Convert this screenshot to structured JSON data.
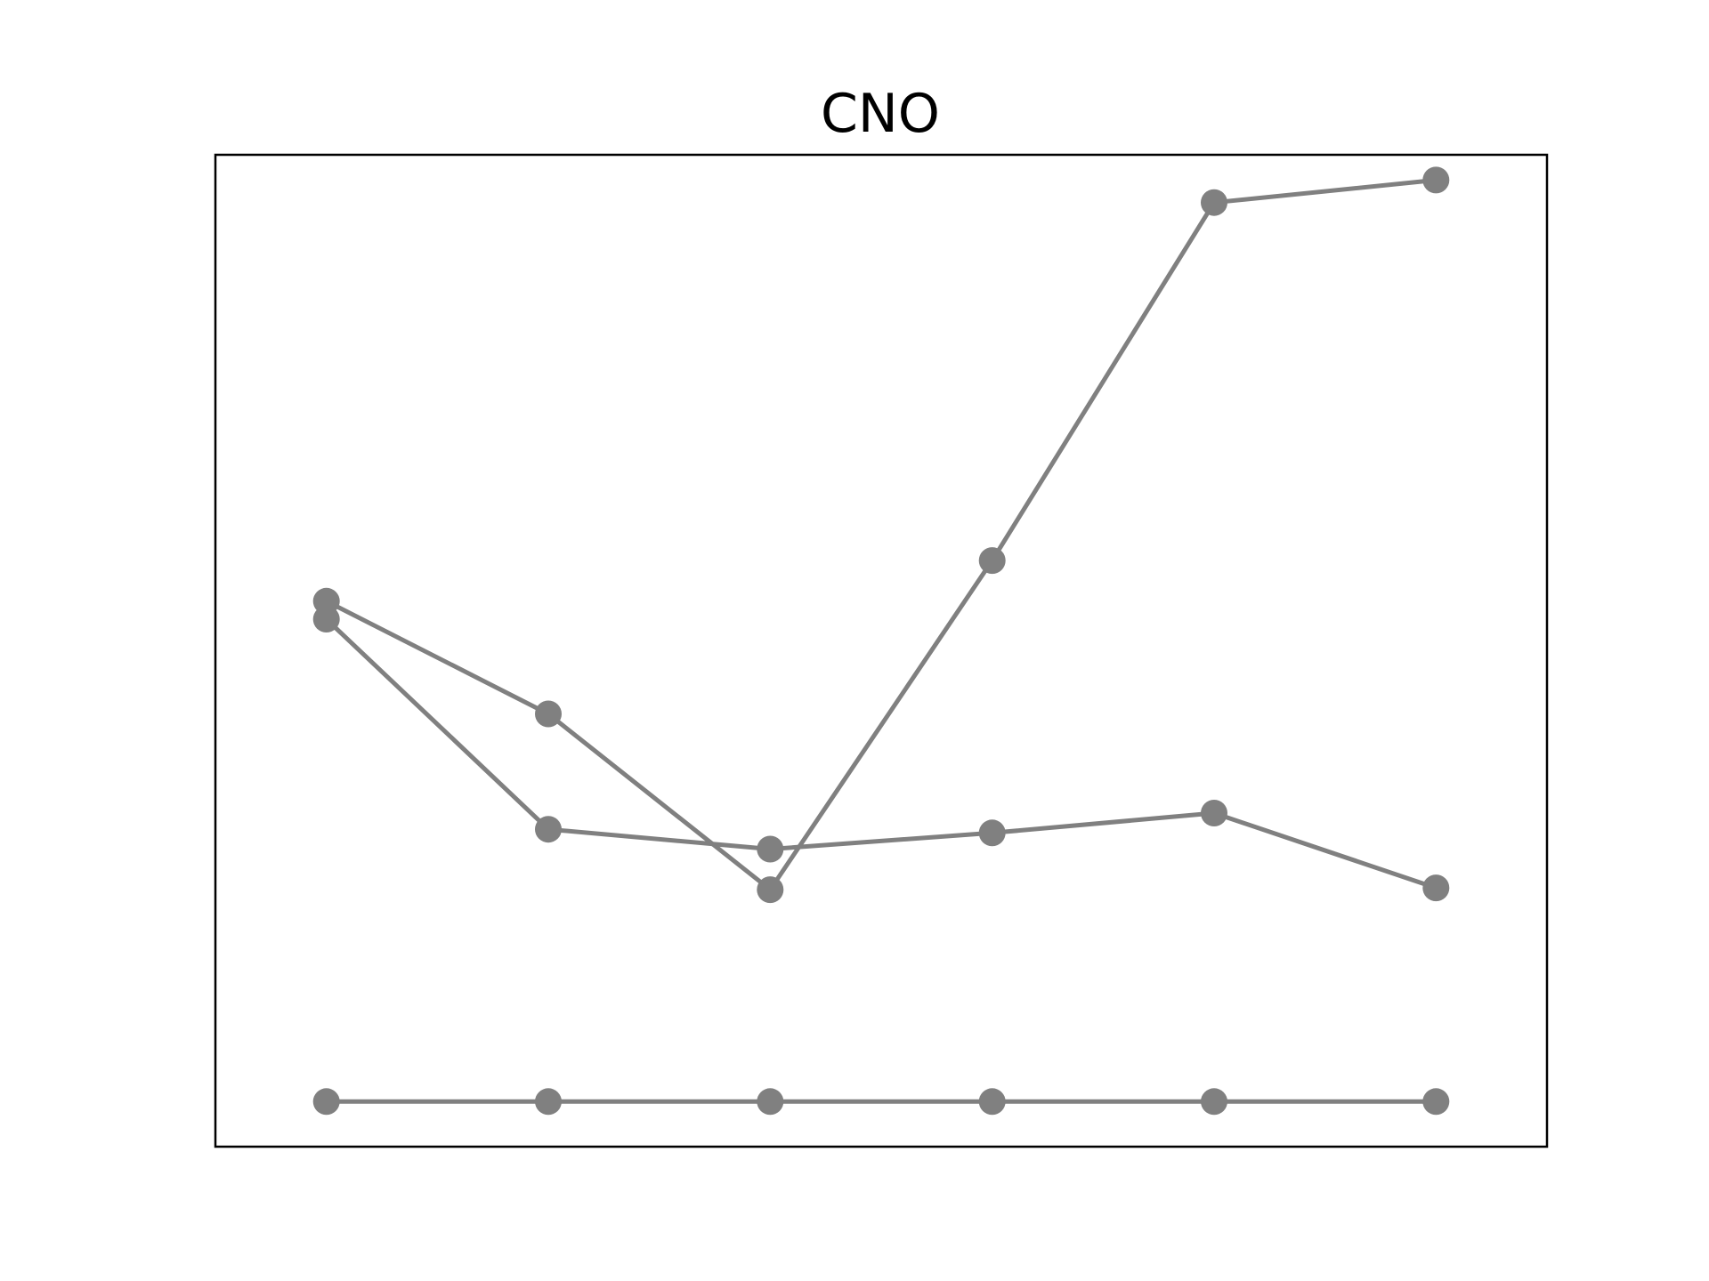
{
  "chart_data": {
    "type": "line",
    "title": "CNO",
    "xlabel": "",
    "ylabel": "",
    "axes_visible": false,
    "grid": false,
    "legend": "none",
    "x": [
      1,
      2,
      3,
      4,
      5,
      6
    ],
    "xlim": [
      0.5,
      6.5
    ],
    "ylim": [
      -0.05,
      1.05
    ],
    "series_color": "#808080",
    "series": [
      {
        "values": [
          0.555,
          0.43,
          0.235,
          0.6,
          0.997,
          1.022
        ]
      },
      {
        "values": [
          0.535,
          0.302,
          0.28,
          0.298,
          0.32,
          0.237
        ]
      },
      {
        "values": [
          0.0,
          0.0,
          0.0,
          0.0,
          0.0,
          0.0
        ]
      }
    ]
  }
}
